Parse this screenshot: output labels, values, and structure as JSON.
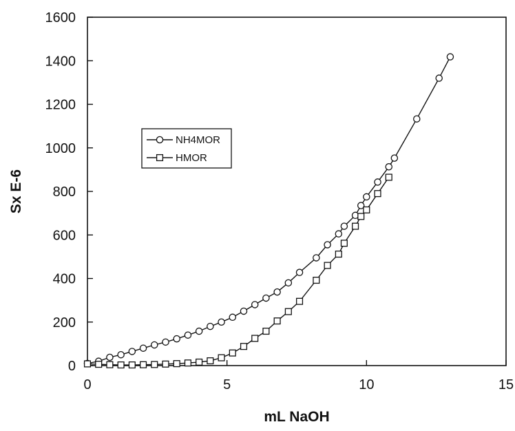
{
  "chart_data": {
    "type": "line",
    "xlabel": "mL NaOH",
    "ylabel": "Sx E-6",
    "xlim": [
      0,
      15
    ],
    "ylim": [
      0,
      1600
    ],
    "xticks": [
      "0",
      "5",
      "10",
      "15"
    ],
    "yticks": [
      "0",
      "200",
      "400",
      "600",
      "800",
      "1000",
      "1200",
      "1400",
      "1600"
    ],
    "grid": false,
    "legend_position": "left-center",
    "series": [
      {
        "name": "NH4MOR",
        "marker": "circle",
        "x": [
          0.0,
          0.4,
          0.8,
          1.2,
          1.6,
          2.0,
          2.4,
          2.8,
          3.2,
          3.6,
          4.0,
          4.4,
          4.8,
          5.2,
          5.6,
          6.0,
          6.4,
          6.8,
          7.2,
          7.6,
          8.2,
          8.6,
          9.0,
          9.2,
          9.6,
          9.8,
          10.0,
          10.4,
          10.8,
          11.0,
          11.8,
          12.6,
          13.0
        ],
        "y": [
          10,
          20,
          38,
          50,
          65,
          80,
          95,
          108,
          123,
          140,
          158,
          180,
          200,
          222,
          250,
          280,
          310,
          338,
          380,
          428,
          495,
          555,
          605,
          640,
          690,
          735,
          775,
          843,
          913,
          953,
          1133,
          1320,
          1418
        ]
      },
      {
        "name": "HMOR",
        "marker": "square",
        "x": [
          0.0,
          0.4,
          0.8,
          1.2,
          1.6,
          2.0,
          2.4,
          2.8,
          3.2,
          3.6,
          4.0,
          4.4,
          4.8,
          5.2,
          5.6,
          6.0,
          6.4,
          6.8,
          7.2,
          7.6,
          8.2,
          8.6,
          9.0,
          9.2,
          9.6,
          9.8,
          10.0,
          10.4,
          10.8
        ],
        "y": [
          8,
          6,
          4,
          3,
          3,
          4,
          5,
          7,
          9,
          12,
          16,
          22,
          36,
          58,
          88,
          125,
          158,
          205,
          248,
          295,
          392,
          460,
          512,
          562,
          640,
          685,
          715,
          790,
          865
        ]
      }
    ],
    "legend": [
      {
        "label": "NH4MOR",
        "marker": "circle"
      },
      {
        "label": "HMOR",
        "marker": "square"
      }
    ]
  }
}
